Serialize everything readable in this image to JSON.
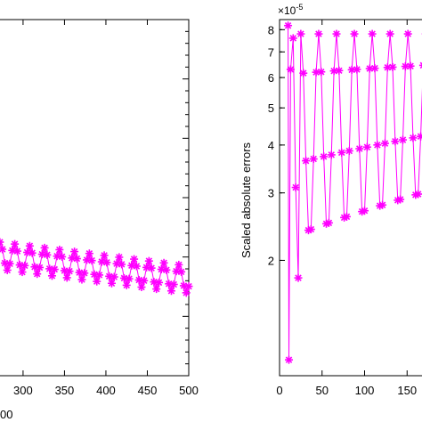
{
  "chart_data": [
    {
      "type": "line",
      "title": "",
      "xlabel": "",
      "xlabel_fragment": "00",
      "ylabel": "",
      "xlim": [
        270,
        500
      ],
      "x_ticks": [
        300,
        350,
        400,
        450,
        500
      ],
      "y_ticks": [],
      "grid": false,
      "line_color": "#ff00ff",
      "marker": "asterisk",
      "series": [
        {
          "x_start": 272,
          "x_end": 500,
          "x_step": 3,
          "trend_start": 0.392,
          "trend_end": 0.325,
          "oscillation_amplitude": 0.038,
          "oscillation_period_points": 6
        }
      ]
    },
    {
      "type": "line",
      "title": "",
      "xlabel": "",
      "ylabel": "Scaled absolute errors",
      "xlim": [
        0,
        178
      ],
      "ylim": [
        1e-05,
        8.5e-05
      ],
      "yscale": "log",
      "multiplier": "×10",
      "multiplier_exponent": "-5",
      "x_ticks": [
        0,
        50,
        100,
        150
      ],
      "y_ticks": [
        2,
        3,
        4,
        5,
        6,
        7,
        8
      ],
      "y_ticks_scale": 1e-05,
      "grid": false,
      "line_color": "#ff00ff",
      "marker": "asterisk",
      "series": [
        {
          "x_start": 10,
          "x_end": 178,
          "x_step": 3,
          "first_points": [
            [
              10,
              8.2e-05
            ],
            [
              11,
              1.1e-05
            ],
            [
              13,
              6.3e-05
            ],
            [
              16,
              7.6e-05
            ],
            [
              19,
              3.1e-05
            ],
            [
              22,
              1.8e-05
            ]
          ],
          "peak_value": 7.8e-05,
          "envelope_low_start": 2.2e-05,
          "envelope_low_end": 2.9e-05,
          "oscillation_period_points": 7
        }
      ]
    }
  ]
}
